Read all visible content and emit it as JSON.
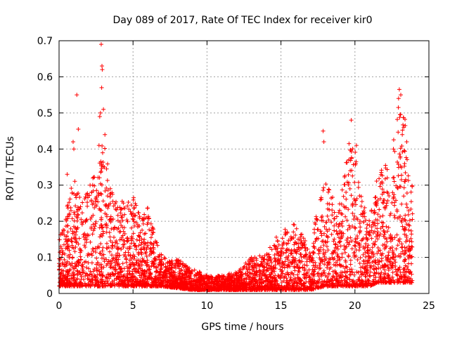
{
  "chart_data": {
    "type": "scatter",
    "title": "Day 089 of 2017, Rate Of TEC Index for receiver kir0",
    "xlabel": "GPS time / hours",
    "ylabel": "ROTI / TECUs",
    "xlim": [
      0,
      25
    ],
    "ylim": [
      0,
      0.7
    ],
    "xticks": [
      0,
      5,
      10,
      15,
      20,
      25
    ],
    "yticks": [
      0,
      0.1,
      0.2,
      0.3,
      0.4,
      0.5,
      0.6,
      0.7
    ],
    "grid": true,
    "marker": "+",
    "color": "#ff0000",
    "envelope": [
      {
        "x": 0.0,
        "low": 0.02,
        "high": 0.15
      },
      {
        "x": 0.5,
        "low": 0.02,
        "high": 0.24
      },
      {
        "x": 1.0,
        "low": 0.02,
        "high": 0.32
      },
      {
        "x": 1.5,
        "low": 0.02,
        "high": 0.26
      },
      {
        "x": 2.0,
        "low": 0.02,
        "high": 0.3
      },
      {
        "x": 2.5,
        "low": 0.02,
        "high": 0.35
      },
      {
        "x": 3.0,
        "low": 0.02,
        "high": 0.44
      },
      {
        "x": 3.5,
        "low": 0.02,
        "high": 0.3
      },
      {
        "x": 4.0,
        "low": 0.02,
        "high": 0.25
      },
      {
        "x": 4.5,
        "low": 0.02,
        "high": 0.26
      },
      {
        "x": 5.0,
        "low": 0.02,
        "high": 0.27
      },
      {
        "x": 5.5,
        "low": 0.02,
        "high": 0.22
      },
      {
        "x": 6.0,
        "low": 0.02,
        "high": 0.24
      },
      {
        "x": 6.5,
        "low": 0.02,
        "high": 0.16
      },
      {
        "x": 7.0,
        "low": 0.02,
        "high": 0.1
      },
      {
        "x": 8.0,
        "low": 0.015,
        "high": 0.095
      },
      {
        "x": 9.0,
        "low": 0.01,
        "high": 0.07
      },
      {
        "x": 10.0,
        "low": 0.01,
        "high": 0.05
      },
      {
        "x": 11.0,
        "low": 0.01,
        "high": 0.05
      },
      {
        "x": 12.0,
        "low": 0.01,
        "high": 0.06
      },
      {
        "x": 13.0,
        "low": 0.01,
        "high": 0.1
      },
      {
        "x": 14.0,
        "low": 0.01,
        "high": 0.11
      },
      {
        "x": 15.0,
        "low": 0.01,
        "high": 0.18
      },
      {
        "x": 16.0,
        "low": 0.01,
        "high": 0.2
      },
      {
        "x": 16.5,
        "low": 0.01,
        "high": 0.16
      },
      {
        "x": 17.0,
        "low": 0.01,
        "high": 0.12
      },
      {
        "x": 17.5,
        "low": 0.015,
        "high": 0.25
      },
      {
        "x": 18.0,
        "low": 0.02,
        "high": 0.33
      },
      {
        "x": 18.5,
        "low": 0.02,
        "high": 0.28
      },
      {
        "x": 19.0,
        "low": 0.02,
        "high": 0.25
      },
      {
        "x": 19.5,
        "low": 0.02,
        "high": 0.4
      },
      {
        "x": 20.0,
        "low": 0.02,
        "high": 0.41
      },
      {
        "x": 20.5,
        "low": 0.02,
        "high": 0.25
      },
      {
        "x": 21.0,
        "low": 0.02,
        "high": 0.22
      },
      {
        "x": 21.5,
        "low": 0.03,
        "high": 0.34
      },
      {
        "x": 22.0,
        "low": 0.03,
        "high": 0.35
      },
      {
        "x": 22.5,
        "low": 0.03,
        "high": 0.39
      },
      {
        "x": 23.0,
        "low": 0.03,
        "high": 0.56
      },
      {
        "x": 23.5,
        "low": 0.03,
        "high": 0.46
      },
      {
        "x": 23.9,
        "low": 0.03,
        "high": 0.29
      }
    ],
    "outliers": [
      {
        "x": 1.2,
        "y": 0.55
      },
      {
        "x": 1.3,
        "y": 0.455
      },
      {
        "x": 0.95,
        "y": 0.42
      },
      {
        "x": 1.0,
        "y": 0.4
      },
      {
        "x": 0.55,
        "y": 0.33
      },
      {
        "x": 2.85,
        "y": 0.69
      },
      {
        "x": 2.9,
        "y": 0.63
      },
      {
        "x": 2.92,
        "y": 0.62
      },
      {
        "x": 2.88,
        "y": 0.57
      },
      {
        "x": 3.0,
        "y": 0.51
      },
      {
        "x": 2.8,
        "y": 0.5
      },
      {
        "x": 2.75,
        "y": 0.49
      },
      {
        "x": 3.1,
        "y": 0.44
      },
      {
        "x": 2.7,
        "y": 0.41
      },
      {
        "x": 17.85,
        "y": 0.45
      },
      {
        "x": 17.9,
        "y": 0.42
      },
      {
        "x": 19.75,
        "y": 0.48
      },
      {
        "x": 19.6,
        "y": 0.415
      },
      {
        "x": 20.1,
        "y": 0.41
      },
      {
        "x": 23.0,
        "y": 0.565
      },
      {
        "x": 23.1,
        "y": 0.55
      },
      {
        "x": 22.95,
        "y": 0.54
      },
      {
        "x": 23.05,
        "y": 0.495
      },
      {
        "x": 23.4,
        "y": 0.465
      },
      {
        "x": 23.2,
        "y": 0.44
      },
      {
        "x": 23.5,
        "y": 0.42
      },
      {
        "x": 22.6,
        "y": 0.4
      }
    ]
  }
}
